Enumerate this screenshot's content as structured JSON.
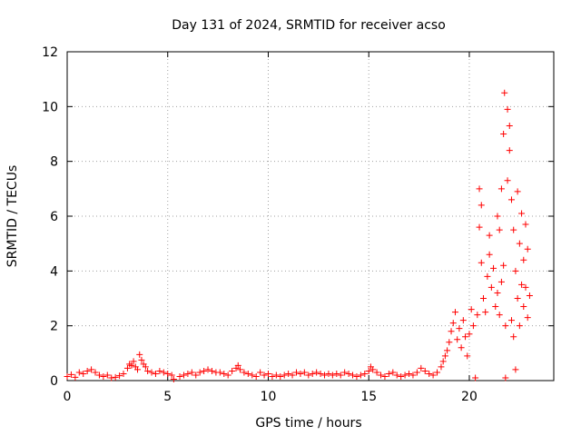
{
  "chart_data": {
    "type": "scatter",
    "title": "Day 131 of 2024, SRMTID for receiver acso",
    "xlabel": "GPS time / hours",
    "ylabel": "SRMTID / TECUs",
    "xlim": [
      0,
      24.2
    ],
    "ylim": [
      0,
      12
    ],
    "xticks": [
      0,
      5,
      10,
      15,
      20
    ],
    "yticks": [
      0,
      2,
      4,
      6,
      8,
      10,
      12
    ],
    "grid": true,
    "marker": "+",
    "colors": {
      "series": "#ff0000"
    },
    "series": [
      {
        "name": "SRMTID",
        "points": [
          [
            0.0,
            0.15
          ],
          [
            0.2,
            0.22
          ],
          [
            0.4,
            0.12
          ],
          [
            0.6,
            0.3
          ],
          [
            0.8,
            0.25
          ],
          [
            1.0,
            0.35
          ],
          [
            1.2,
            0.4
          ],
          [
            1.4,
            0.3
          ],
          [
            1.6,
            0.2
          ],
          [
            1.8,
            0.15
          ],
          [
            2.0,
            0.2
          ],
          [
            2.2,
            0.1
          ],
          [
            2.4,
            0.12
          ],
          [
            2.6,
            0.18
          ],
          [
            2.8,
            0.25
          ],
          [
            3.0,
            0.45
          ],
          [
            3.1,
            0.6
          ],
          [
            3.2,
            0.55
          ],
          [
            3.3,
            0.7
          ],
          [
            3.4,
            0.5
          ],
          [
            3.5,
            0.4
          ],
          [
            3.6,
            0.95
          ],
          [
            3.7,
            0.75
          ],
          [
            3.8,
            0.6
          ],
          [
            3.9,
            0.5
          ],
          [
            4.0,
            0.35
          ],
          [
            4.2,
            0.3
          ],
          [
            4.4,
            0.25
          ],
          [
            4.6,
            0.35
          ],
          [
            4.8,
            0.3
          ],
          [
            5.0,
            0.25
          ],
          [
            5.2,
            0.2
          ],
          [
            5.3,
            0.05
          ],
          [
            5.6,
            0.15
          ],
          [
            5.8,
            0.2
          ],
          [
            6.0,
            0.25
          ],
          [
            6.2,
            0.3
          ],
          [
            6.4,
            0.2
          ],
          [
            6.6,
            0.3
          ],
          [
            6.8,
            0.35
          ],
          [
            7.0,
            0.4
          ],
          [
            7.2,
            0.35
          ],
          [
            7.4,
            0.3
          ],
          [
            7.6,
            0.3
          ],
          [
            7.8,
            0.25
          ],
          [
            8.0,
            0.2
          ],
          [
            8.2,
            0.35
          ],
          [
            8.4,
            0.45
          ],
          [
            8.5,
            0.55
          ],
          [
            8.6,
            0.4
          ],
          [
            8.8,
            0.3
          ],
          [
            9.0,
            0.25
          ],
          [
            9.2,
            0.2
          ],
          [
            9.4,
            0.15
          ],
          [
            9.6,
            0.3
          ],
          [
            9.8,
            0.2
          ],
          [
            10.0,
            0.25
          ],
          [
            10.2,
            0.15
          ],
          [
            10.4,
            0.2
          ],
          [
            10.6,
            0.15
          ],
          [
            10.8,
            0.2
          ],
          [
            11.0,
            0.25
          ],
          [
            11.2,
            0.2
          ],
          [
            11.4,
            0.3
          ],
          [
            11.6,
            0.25
          ],
          [
            11.8,
            0.3
          ],
          [
            12.0,
            0.2
          ],
          [
            12.2,
            0.25
          ],
          [
            12.4,
            0.3
          ],
          [
            12.6,
            0.25
          ],
          [
            12.8,
            0.2
          ],
          [
            13.0,
            0.25
          ],
          [
            13.2,
            0.2
          ],
          [
            13.4,
            0.25
          ],
          [
            13.6,
            0.2
          ],
          [
            13.8,
            0.3
          ],
          [
            14.0,
            0.25
          ],
          [
            14.2,
            0.2
          ],
          [
            14.4,
            0.15
          ],
          [
            14.6,
            0.2
          ],
          [
            14.8,
            0.25
          ],
          [
            15.0,
            0.35
          ],
          [
            15.1,
            0.5
          ],
          [
            15.2,
            0.4
          ],
          [
            15.4,
            0.3
          ],
          [
            15.6,
            0.2
          ],
          [
            15.8,
            0.15
          ],
          [
            16.0,
            0.25
          ],
          [
            16.2,
            0.3
          ],
          [
            16.4,
            0.2
          ],
          [
            16.6,
            0.15
          ],
          [
            16.8,
            0.2
          ],
          [
            17.0,
            0.25
          ],
          [
            17.2,
            0.2
          ],
          [
            17.4,
            0.3
          ],
          [
            17.6,
            0.45
          ],
          [
            17.8,
            0.35
          ],
          [
            18.0,
            0.25
          ],
          [
            18.2,
            0.2
          ],
          [
            18.4,
            0.3
          ],
          [
            18.6,
            0.5
          ],
          [
            18.7,
            0.7
          ],
          [
            18.8,
            0.9
          ],
          [
            18.9,
            1.1
          ],
          [
            19.0,
            1.4
          ],
          [
            19.1,
            1.8
          ],
          [
            19.2,
            2.1
          ],
          [
            19.3,
            2.5
          ],
          [
            19.4,
            1.5
          ],
          [
            19.5,
            1.9
          ],
          [
            19.6,
            1.2
          ],
          [
            19.7,
            2.2
          ],
          [
            19.8,
            1.6
          ],
          [
            19.9,
            0.9
          ],
          [
            20.0,
            1.7
          ],
          [
            20.1,
            2.6
          ],
          [
            20.2,
            2.0
          ],
          [
            20.3,
            0.1
          ],
          [
            20.4,
            2.4
          ],
          [
            20.5,
            5.6
          ],
          [
            20.5,
            7.0
          ],
          [
            20.6,
            4.3
          ],
          [
            20.6,
            6.4
          ],
          [
            20.7,
            3.0
          ],
          [
            20.8,
            2.5
          ],
          [
            20.9,
            3.8
          ],
          [
            21.0,
            5.3
          ],
          [
            21.0,
            4.6
          ],
          [
            21.1,
            3.4
          ],
          [
            21.2,
            4.1
          ],
          [
            21.3,
            2.7
          ],
          [
            21.4,
            3.2
          ],
          [
            21.4,
            6.0
          ],
          [
            21.5,
            5.5
          ],
          [
            21.5,
            2.4
          ],
          [
            21.6,
            3.6
          ],
          [
            21.6,
            7.0
          ],
          [
            21.7,
            9.0
          ],
          [
            21.7,
            4.2
          ],
          [
            21.75,
            10.5
          ],
          [
            21.8,
            0.1
          ],
          [
            21.8,
            2.0
          ],
          [
            21.9,
            9.9
          ],
          [
            21.9,
            7.3
          ],
          [
            22.0,
            8.4
          ],
          [
            22.0,
            9.3
          ],
          [
            22.1,
            2.2
          ],
          [
            22.1,
            6.6
          ],
          [
            22.2,
            5.5
          ],
          [
            22.2,
            1.6
          ],
          [
            22.3,
            0.4
          ],
          [
            22.3,
            4.0
          ],
          [
            22.4,
            3.0
          ],
          [
            22.4,
            6.9
          ],
          [
            22.5,
            2.0
          ],
          [
            22.5,
            5.0
          ],
          [
            22.6,
            3.5
          ],
          [
            22.6,
            6.1
          ],
          [
            22.7,
            4.4
          ],
          [
            22.7,
            2.7
          ],
          [
            22.8,
            3.4
          ],
          [
            22.8,
            5.7
          ],
          [
            22.9,
            4.8
          ],
          [
            22.9,
            2.3
          ],
          [
            23.0,
            3.1
          ]
        ]
      }
    ]
  }
}
